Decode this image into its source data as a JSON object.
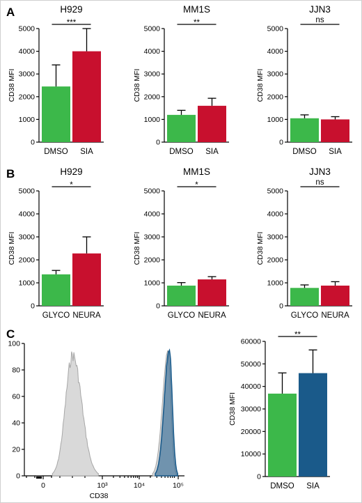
{
  "panel_letters": [
    "A",
    "B",
    "C"
  ],
  "colors": {
    "green": "#3cb84a",
    "red": "#c8102e",
    "blue": "#1a5a8a",
    "grey_fill": "#d9d9d9",
    "grey_stroke": "#a6a6a6"
  },
  "chart_data": [
    {
      "type": "bar",
      "panel": "A",
      "title": "H929",
      "ylabel": "CD38 MFI",
      "categories": [
        "DMSO",
        "SIA"
      ],
      "values": [
        2450,
        4000
      ],
      "errors": [
        950,
        1000
      ],
      "colors": [
        "#3cb84a",
        "#c8102e"
      ],
      "ylim": [
        0,
        5000
      ],
      "yticks": [
        "0",
        "1000",
        "2000",
        "3000",
        "4000",
        "5000"
      ],
      "significance": "***"
    },
    {
      "type": "bar",
      "panel": "A",
      "title": "MM1S",
      "ylabel": "CD38 MFI",
      "categories": [
        "DMSO",
        "SIA"
      ],
      "values": [
        1200,
        1600
      ],
      "errors": [
        200,
        330
      ],
      "colors": [
        "#3cb84a",
        "#c8102e"
      ],
      "ylim": [
        0,
        5000
      ],
      "yticks": [
        "0",
        "1000",
        "2000",
        "3000",
        "4000",
        "5000"
      ],
      "significance": "**"
    },
    {
      "type": "bar",
      "panel": "A",
      "title": "JJN3",
      "ylabel": "CD38 MFI",
      "categories": [
        "DMSO",
        "SIA"
      ],
      "values": [
        1050,
        1000
      ],
      "errors": [
        150,
        120
      ],
      "colors": [
        "#3cb84a",
        "#c8102e"
      ],
      "ylim": [
        0,
        5000
      ],
      "yticks": [
        "0",
        "1000",
        "2000",
        "3000",
        "4000",
        "5000"
      ],
      "significance": "ns"
    },
    {
      "type": "bar",
      "panel": "B",
      "title": "H929",
      "ylabel": "CD38 MFI",
      "categories": [
        "GLYCO",
        "NEURA"
      ],
      "values": [
        1370,
        2280
      ],
      "errors": [
        170,
        720
      ],
      "colors": [
        "#3cb84a",
        "#c8102e"
      ],
      "ylim": [
        0,
        5000
      ],
      "yticks": [
        "0",
        "1000",
        "2000",
        "3000",
        "4000",
        "5000"
      ],
      "significance": "*"
    },
    {
      "type": "bar",
      "panel": "B",
      "title": "MM1S",
      "ylabel": "CD38 MFI",
      "categories": [
        "GLYCO",
        "NEURA"
      ],
      "values": [
        880,
        1150
      ],
      "errors": [
        130,
        120
      ],
      "colors": [
        "#3cb84a",
        "#c8102e"
      ],
      "ylim": [
        0,
        5000
      ],
      "yticks": [
        "0",
        "1000",
        "2000",
        "3000",
        "4000",
        "5000"
      ],
      "significance": "*"
    },
    {
      "type": "bar",
      "panel": "B",
      "title": "JJN3",
      "ylabel": "CD38 MFI",
      "categories": [
        "GLYCO",
        "NEURA"
      ],
      "values": [
        780,
        880
      ],
      "errors": [
        130,
        170
      ],
      "colors": [
        "#3cb84a",
        "#c8102e"
      ],
      "ylim": [
        0,
        5000
      ],
      "yticks": [
        "0",
        "1000",
        "2000",
        "3000",
        "4000",
        "5000"
      ],
      "significance": "ns"
    },
    {
      "type": "area",
      "panel": "C",
      "xlabel": "CD38",
      "ylim": [
        0,
        100
      ],
      "yticks": [
        "0",
        "20",
        "40",
        "60",
        "80",
        "100"
      ],
      "xticks": [
        "0",
        "10³",
        "10⁴",
        "10⁵"
      ],
      "series": [
        {
          "color": "#d9d9d9",
          "mode": 30,
          "peak": 96
        },
        {
          "color": "#d9d9d9",
          "mode": 60000,
          "peak": 95
        },
        {
          "color": "#1a5a8a",
          "mode": 65000,
          "peak": 97
        }
      ]
    },
    {
      "type": "bar",
      "panel": "C",
      "ylabel": "CD38 MFI",
      "categories": [
        "DMSO",
        "SIA"
      ],
      "values": [
        36800,
        45900
      ],
      "errors": [
        9200,
        10300
      ],
      "colors": [
        "#3cb84a",
        "#1a5a8a"
      ],
      "ylim": [
        0,
        60000
      ],
      "yticks": [
        "0",
        "10000",
        "20000",
        "30000",
        "40000",
        "50000",
        "60000"
      ],
      "significance": "**"
    }
  ]
}
